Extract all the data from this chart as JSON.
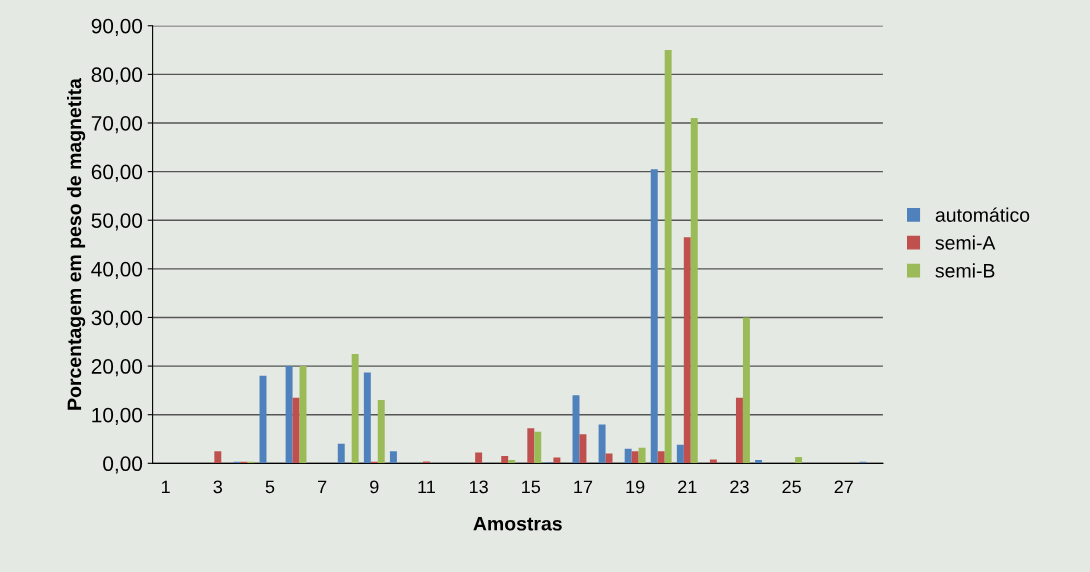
{
  "chart_data": {
    "type": "bar",
    "xlabel": "Amostras",
    "ylabel": "Porcentagem em peso de magnetita",
    "categories": [
      "1",
      null,
      "3",
      null,
      "5",
      null,
      "7",
      null,
      "9",
      null,
      "11",
      null,
      "13",
      null,
      "15",
      null,
      "17",
      null,
      "19",
      null,
      "21",
      null,
      "23",
      null,
      "25",
      null,
      "27",
      null
    ],
    "series": [
      {
        "name": "automático",
        "color": "#4f81bd",
        "values": [
          0,
          0,
          0,
          0.3,
          18,
          20,
          0,
          4,
          18.7,
          2.5,
          0,
          0,
          0,
          0,
          0,
          0.2,
          14,
          8,
          3,
          60.5,
          3.8,
          0,
          0,
          0.7,
          0,
          0,
          0,
          0.3
        ]
      },
      {
        "name": "semi-A",
        "color": "#c0504d",
        "values": [
          0,
          0,
          2.5,
          0.3,
          0,
          13.5,
          0,
          0,
          0.3,
          0,
          0.4,
          0,
          2.2,
          1.5,
          7.2,
          1.2,
          6,
          2,
          2.5,
          2.5,
          46.5,
          0.8,
          13.5,
          0,
          0,
          0,
          0,
          0
        ]
      },
      {
        "name": "semi-B",
        "color": "#9bbb59",
        "values": [
          0,
          0,
          0,
          0.3,
          0,
          20,
          0,
          22.5,
          13,
          0,
          0,
          0,
          0,
          0.7,
          6.5,
          0,
          0,
          0,
          3.2,
          85,
          71,
          0,
          30,
          0,
          1.3,
          0,
          0,
          0
        ]
      }
    ],
    "ylim": [
      0,
      90
    ],
    "yticks": [
      {
        "value": 0,
        "label": "0,00"
      },
      {
        "value": 10,
        "label": "10,00"
      },
      {
        "value": 20,
        "label": "20,00"
      },
      {
        "value": 30,
        "label": "30,00"
      },
      {
        "value": 40,
        "label": "40,00"
      },
      {
        "value": 50,
        "label": "50,00"
      },
      {
        "value": 60,
        "label": "60,00"
      },
      {
        "value": 70,
        "label": "70,00"
      },
      {
        "value": 80,
        "label": "80,00"
      },
      {
        "value": 90,
        "label": "90,00"
      }
    ],
    "grid": "y",
    "legend": "right"
  }
}
